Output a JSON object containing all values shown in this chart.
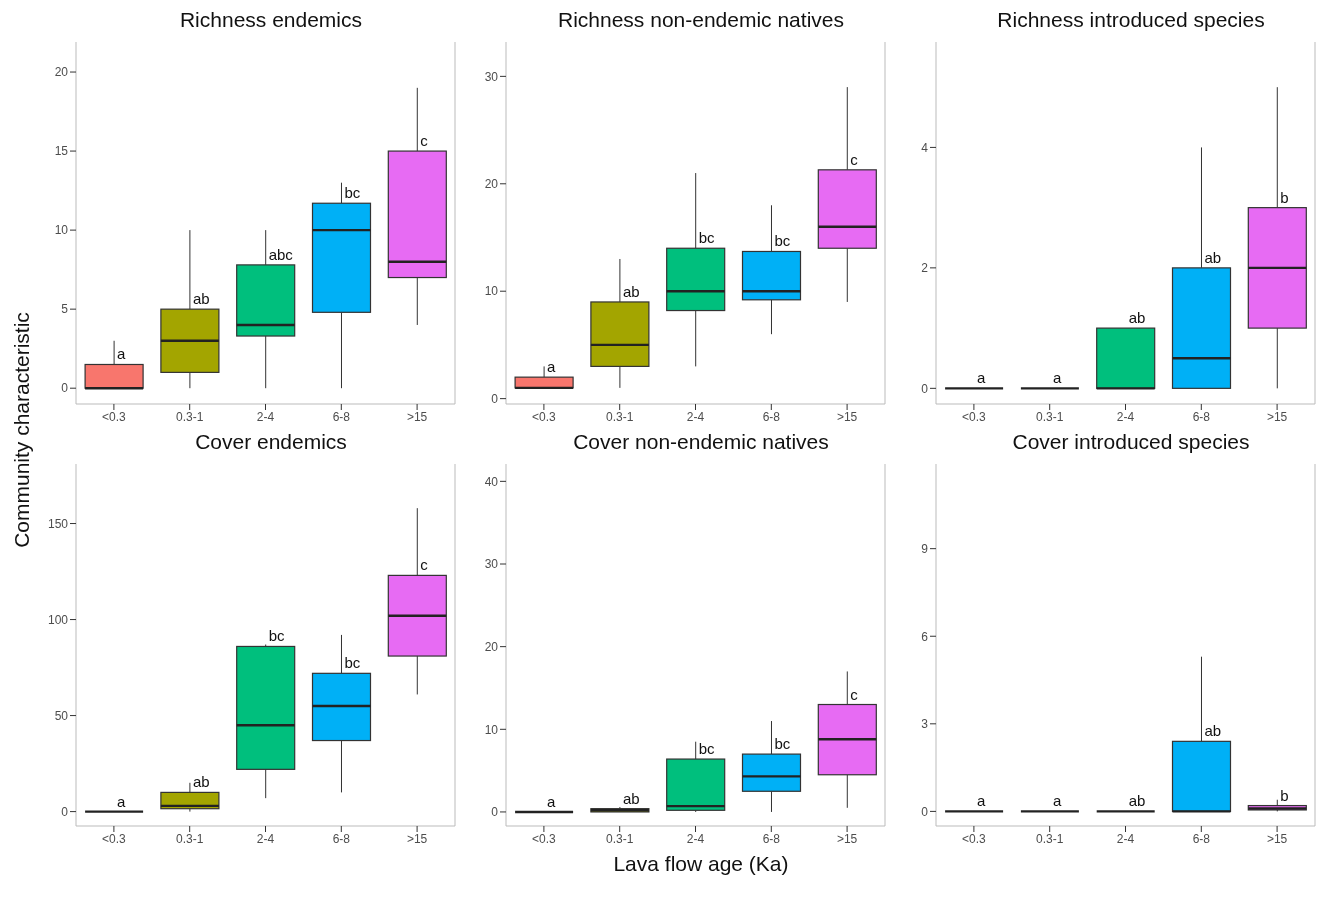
{
  "chart_data": [
    {
      "type": "box",
      "title": "Richness endemics",
      "ylabel": "Community characteristic",
      "categories": [
        "<0.3",
        "0.3-1",
        "2-4",
        "6-8",
        ">15"
      ],
      "colors": [
        "#f8766d",
        "#a3a500",
        "#00bf7d",
        "#00b0f6",
        "#e76bf3"
      ],
      "ylim": [
        -1,
        21.9
      ],
      "yticks": [
        0,
        5,
        10,
        15,
        20
      ],
      "boxes": [
        {
          "low": 0,
          "q1": 0,
          "median": 0,
          "q3": 1.5,
          "high": 3
        },
        {
          "low": 0,
          "q1": 1,
          "median": 3,
          "q3": 5,
          "high": 10
        },
        {
          "low": 0,
          "q1": 3.3,
          "median": 4,
          "q3": 7.8,
          "high": 10
        },
        {
          "low": 0,
          "q1": 4.8,
          "median": 10,
          "q3": 11.7,
          "high": 13
        },
        {
          "low": 4,
          "q1": 7,
          "median": 8,
          "q3": 15,
          "high": 19
        }
      ],
      "annotations": [
        {
          "text": "a",
          "x": "<0.3",
          "y": 1.5
        },
        {
          "text": "ab",
          "x": "0.3-1",
          "y": 5
        },
        {
          "text": "abc",
          "x": "2-4",
          "y": 7.8
        },
        {
          "text": "bc",
          "x": "6-8",
          "y": 11.7
        },
        {
          "text": "c",
          "x": ">15",
          "y": 15
        }
      ]
    },
    {
      "type": "box",
      "title": "Richness non-endemic natives",
      "categories": [
        "<0.3",
        "0.3-1",
        "2-4",
        "6-8",
        ">15"
      ],
      "colors": [
        "#f8766d",
        "#a3a500",
        "#00bf7d",
        "#00b0f6",
        "#e76bf3"
      ],
      "ylim": [
        -0.5,
        33.2
      ],
      "yticks": [
        0,
        10,
        20,
        30
      ],
      "boxes": [
        {
          "low": 1,
          "q1": 1,
          "median": 1,
          "q3": 2,
          "high": 3
        },
        {
          "low": 1,
          "q1": 3,
          "median": 5,
          "q3": 9,
          "high": 13
        },
        {
          "low": 3,
          "q1": 8.2,
          "median": 10,
          "q3": 14,
          "high": 21
        },
        {
          "low": 6,
          "q1": 9.2,
          "median": 10,
          "q3": 13.7,
          "high": 18
        },
        {
          "low": 9,
          "q1": 14,
          "median": 16,
          "q3": 21.3,
          "high": 29
        }
      ],
      "annotations": [
        {
          "text": "a",
          "x": "<0.3",
          "y": 2
        },
        {
          "text": "ab",
          "x": "0.3-1",
          "y": 9
        },
        {
          "text": "bc",
          "x": "2-4",
          "y": 14
        },
        {
          "text": "bc",
          "x": "6-8",
          "y": 13.7
        },
        {
          "text": "c",
          "x": ">15",
          "y": 21.3
        }
      ]
    },
    {
      "type": "box",
      "title": "Richness introduced species",
      "categories": [
        "<0.3",
        "0.3-1",
        "2-4",
        "6-8",
        ">15"
      ],
      "colors": [
        "#222222",
        "#222222",
        "#00bf7d",
        "#00b0f6",
        "#e76bf3"
      ],
      "ylim": [
        -0.26,
        5.75
      ],
      "yticks": [
        0,
        2,
        4
      ],
      "boxes": [
        {
          "low": 0,
          "q1": 0,
          "median": 0,
          "q3": 0,
          "high": 0
        },
        {
          "low": 0,
          "q1": 0,
          "median": 0,
          "q3": 0,
          "high": 0
        },
        {
          "low": 0,
          "q1": 0,
          "median": 0,
          "q3": 1,
          "high": 1
        },
        {
          "low": 0,
          "q1": 0,
          "median": 0.5,
          "q3": 2,
          "high": 4
        },
        {
          "low": 0,
          "q1": 1,
          "median": 2,
          "q3": 3,
          "high": 5
        }
      ],
      "annotations": [
        {
          "text": "a",
          "x": "<0.3",
          "y": 0
        },
        {
          "text": "a",
          "x": "0.3-1",
          "y": 0
        },
        {
          "text": "ab",
          "x": "2-4",
          "y": 1
        },
        {
          "text": "ab",
          "x": "6-8",
          "y": 2
        },
        {
          "text": "b",
          "x": ">15",
          "y": 3
        }
      ]
    },
    {
      "type": "box",
      "title": "Cover endemics",
      "categories": [
        "<0.3",
        "0.3-1",
        "2-4",
        "6-8",
        ">15"
      ],
      "colors": [
        "#222222",
        "#a3a500",
        "#00bf7d",
        "#00b0f6",
        "#e76bf3"
      ],
      "ylim": [
        -7.5,
        181
      ],
      "yticks": [
        0,
        50,
        100,
        150
      ],
      "boxes": [
        {
          "low": 0,
          "q1": 0,
          "median": 0,
          "q3": 0,
          "high": 0
        },
        {
          "low": 0,
          "q1": 1.5,
          "median": 3,
          "q3": 10,
          "high": 15
        },
        {
          "low": 7,
          "q1": 22,
          "median": 45,
          "q3": 86,
          "high": 87
        },
        {
          "low": 10,
          "q1": 37,
          "median": 55,
          "q3": 72,
          "high": 92
        },
        {
          "low": 61,
          "q1": 81,
          "median": 102,
          "q3": 123,
          "high": 158
        }
      ],
      "annotations": [
        {
          "text": "a",
          "x": "<0.3",
          "y": 0
        },
        {
          "text": "ab",
          "x": "0.3-1",
          "y": 10
        },
        {
          "text": "bc",
          "x": "2-4",
          "y": 86
        },
        {
          "text": "bc",
          "x": "6-8",
          "y": 72
        },
        {
          "text": "c",
          "x": ">15",
          "y": 123
        }
      ]
    },
    {
      "type": "box",
      "title": "Cover non-endemic natives",
      "xlabel": "Lava flow age (Ka)",
      "categories": [
        "<0.3",
        "0.3-1",
        "2-4",
        "6-8",
        ">15"
      ],
      "colors": [
        "#222222",
        "#a3a500",
        "#00bf7d",
        "#00b0f6",
        "#e76bf3"
      ],
      "ylim": [
        -1.7,
        42.1
      ],
      "yticks": [
        0,
        10,
        20,
        30,
        40
      ],
      "boxes": [
        {
          "low": 0,
          "q1": 0,
          "median": 0,
          "q3": 0,
          "high": 0
        },
        {
          "low": 0,
          "q1": 0,
          "median": 0.2,
          "q3": 0.4,
          "high": 0.6
        },
        {
          "low": 0,
          "q1": 0.2,
          "median": 0.7,
          "q3": 6.4,
          "high": 8.5
        },
        {
          "low": 0,
          "q1": 2.5,
          "median": 4.3,
          "q3": 7,
          "high": 11
        },
        {
          "low": 0.5,
          "q1": 4.5,
          "median": 8.8,
          "q3": 13,
          "high": 17
        }
      ],
      "annotations": [
        {
          "text": "a",
          "x": "<0.3",
          "y": 0
        },
        {
          "text": "ab",
          "x": "0.3-1",
          "y": 0.4
        },
        {
          "text": "bc",
          "x": "2-4",
          "y": 6.4
        },
        {
          "text": "bc",
          "x": "6-8",
          "y": 7
        },
        {
          "text": "c",
          "x": ">15",
          "y": 13
        }
      ]
    },
    {
      "type": "box",
      "title": "Cover introduced species",
      "categories": [
        "<0.3",
        "0.3-1",
        "2-4",
        "6-8",
        ">15"
      ],
      "colors": [
        "#222222",
        "#222222",
        "#222222",
        "#00b0f6",
        "#e76bf3"
      ],
      "ylim": [
        -0.5,
        11.9
      ],
      "yticks": [
        0,
        3,
        6,
        9
      ],
      "boxes": [
        {
          "low": 0,
          "q1": 0,
          "median": 0,
          "q3": 0,
          "high": 0
        },
        {
          "low": 0,
          "q1": 0,
          "median": 0,
          "q3": 0,
          "high": 0
        },
        {
          "low": 0,
          "q1": 0,
          "median": 0,
          "q3": 0,
          "high": 0
        },
        {
          "low": 0,
          "q1": 0,
          "median": 0,
          "q3": 2.4,
          "high": 5.3
        },
        {
          "low": 0,
          "q1": 0.05,
          "median": 0.1,
          "q3": 0.2,
          "high": 0.4
        }
      ],
      "annotations": [
        {
          "text": "a",
          "x": "<0.3",
          "y": 0
        },
        {
          "text": "a",
          "x": "0.3-1",
          "y": 0
        },
        {
          "text": "ab",
          "x": "2-4",
          "y": 0
        },
        {
          "text": "ab",
          "x": "6-8",
          "y": 2.4
        },
        {
          "text": "b",
          "x": ">15",
          "y": 0.2
        }
      ]
    }
  ]
}
